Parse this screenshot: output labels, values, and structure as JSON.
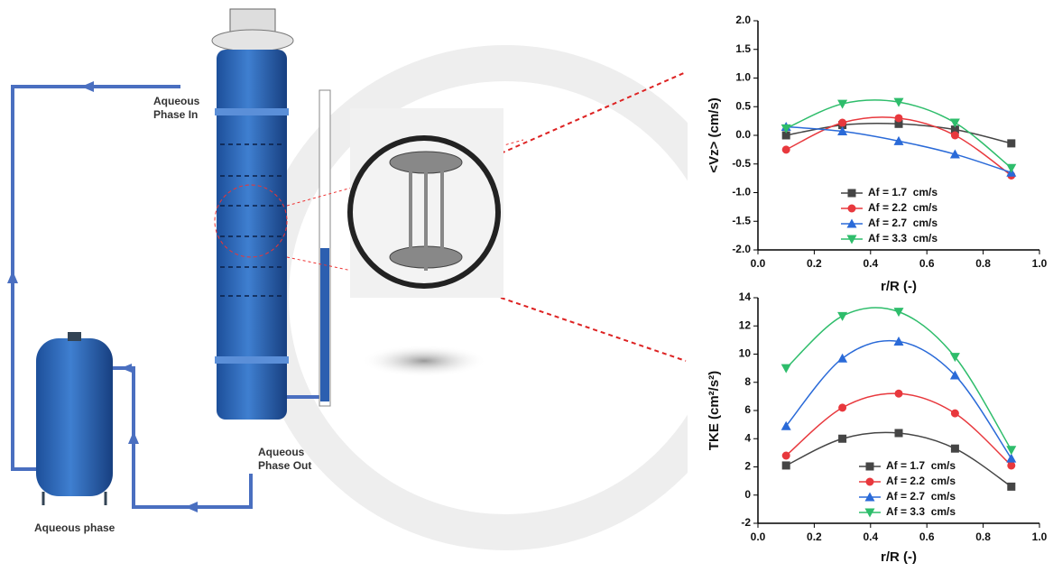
{
  "diagram": {
    "inlet_label": [
      "Aqueous",
      "Phase In"
    ],
    "outlet_label": [
      "Aqueous",
      "Phase Out"
    ],
    "vessel_label": "Aqueous phase"
  },
  "chart_data": [
    {
      "type": "line",
      "x": [
        0.1,
        0.3,
        0.5,
        0.7,
        0.9
      ],
      "xlabel": "r/R (-)",
      "ylabel": "<Vz> (cm/s)",
      "xlim": [
        0,
        1
      ],
      "xticks": [
        {
          "value": 0,
          "label": "0.0"
        },
        0.2,
        0.4,
        0.6,
        0.8,
        {
          "value": 1,
          "label": "1.0"
        }
      ],
      "ylim": [
        -2,
        2
      ],
      "yticks": [
        {
          "value": -2,
          "label": "-2.0"
        },
        -1.5,
        {
          "value": -1,
          "label": "-1.0"
        },
        -0.5,
        {
          "value": 0,
          "label": "0.0"
        },
        0.5,
        {
          "value": 1,
          "label": "1.0"
        },
        1.5,
        {
          "value": 2,
          "label": "2.0"
        }
      ],
      "legend": "lower center",
      "series": [
        {
          "name": "Af = 1.7  cm/s",
          "color": "#454545",
          "marker": "square",
          "values": [
            0.0,
            0.18,
            0.2,
            0.1,
            -0.14
          ]
        },
        {
          "name": "Af = 2.2  cm/s",
          "color": "#e8383d",
          "marker": "circle",
          "values": [
            -0.25,
            0.22,
            0.3,
            0.0,
            -0.7
          ]
        },
        {
          "name": "Af = 2.7  cm/s",
          "color": "#2a6ad8",
          "marker": "triangle-up",
          "values": [
            0.15,
            0.07,
            -0.1,
            -0.33,
            -0.65
          ]
        },
        {
          "name": "Af = 3.3  cm/s",
          "color": "#2ebd6b",
          "marker": "triangle-down",
          "values": [
            0.12,
            0.55,
            0.58,
            0.22,
            -0.57
          ]
        }
      ]
    },
    {
      "type": "line",
      "x": [
        0.1,
        0.3,
        0.5,
        0.7,
        0.9
      ],
      "xlabel": "r/R (-)",
      "ylabel": "TKE (cm²/s²)",
      "xlim": [
        0,
        1
      ],
      "xticks": [
        {
          "value": 0,
          "label": "0.0"
        },
        0.2,
        0.4,
        0.6,
        0.8,
        {
          "value": 1,
          "label": "1.0"
        }
      ],
      "ylim": [
        -2,
        14
      ],
      "yticks": [
        -2,
        0,
        2,
        4,
        6,
        8,
        10,
        12,
        14
      ],
      "legend": "lower right",
      "series": [
        {
          "name": "Af = 1.7  cm/s",
          "color": "#454545",
          "marker": "square",
          "values": [
            2.1,
            4.0,
            4.4,
            3.3,
            0.6
          ]
        },
        {
          "name": "Af = 2.2  cm/s",
          "color": "#e8383d",
          "marker": "circle",
          "values": [
            2.8,
            6.2,
            7.2,
            5.8,
            2.1
          ]
        },
        {
          "name": "Af = 2.7  cm/s",
          "color": "#2a6ad8",
          "marker": "triangle-up",
          "values": [
            4.9,
            9.7,
            10.9,
            8.5,
            2.6
          ]
        },
        {
          "name": "Af = 3.3  cm/s",
          "color": "#2ebd6b",
          "marker": "triangle-down",
          "values": [
            9.0,
            12.7,
            13.0,
            9.8,
            3.2
          ]
        }
      ]
    }
  ]
}
